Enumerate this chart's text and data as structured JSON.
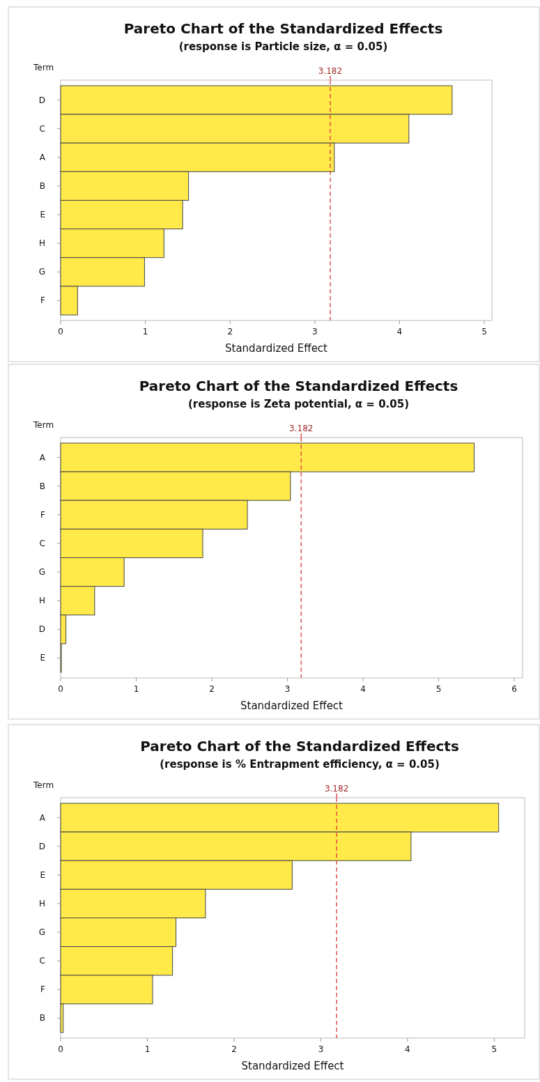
{
  "chart_data": [
    {
      "type": "bar",
      "orientation": "horizontal",
      "title": "Pareto Chart of the Standardized Effects",
      "subtitle": "(response is Particle size, α = 0.05)",
      "ylabel": "Term",
      "xlabel": "Standardized Effect",
      "categories": [
        "D",
        "C",
        "A",
        "B",
        "E",
        "H",
        "G",
        "F"
      ],
      "values": [
        4.62,
        4.11,
        3.23,
        1.51,
        1.44,
        1.22,
        0.99,
        0.2
      ],
      "color": "#ffea4a",
      "xlim": [
        0,
        5.09
      ],
      "xticks": [
        0,
        1,
        2,
        3,
        4,
        5
      ],
      "ref_lines": [
        {
          "axis": "x",
          "value": 3.182,
          "label": "3.182",
          "color": "#e0383a",
          "line_style": "dashed"
        }
      ]
    },
    {
      "type": "bar",
      "orientation": "horizontal",
      "title": "Pareto Chart of the Standardized Effects",
      "subtitle": "(response is Zeta potential, α = 0.05)",
      "ylabel": "Term",
      "xlabel": "Standardized Effect",
      "categories": [
        "A",
        "B",
        "F",
        "C",
        "G",
        "H",
        "D",
        "E"
      ],
      "values": [
        5.47,
        3.04,
        2.47,
        1.88,
        0.84,
        0.45,
        0.07,
        0.01
      ],
      "color": "#ffea4a",
      "xlim": [
        0,
        6.11
      ],
      "xticks": [
        0,
        1,
        2,
        3,
        4,
        5,
        6
      ],
      "ref_lines": [
        {
          "axis": "x",
          "value": 3.182,
          "label": "3.182",
          "color": "#e0383a",
          "line_style": "dashed"
        }
      ]
    },
    {
      "type": "bar",
      "orientation": "horizontal",
      "title": "Pareto Chart of the Standardized Effects",
      "subtitle": "(response is % Entrapment efficiency, α = 0.05)",
      "ylabel": "Term",
      "xlabel": "Standardized Effect",
      "categories": [
        "A",
        "D",
        "E",
        "H",
        "G",
        "C",
        "F",
        "B"
      ],
      "values": [
        5.05,
        4.04,
        2.67,
        1.67,
        1.33,
        1.29,
        1.06,
        0.03
      ],
      "color": "#ffea4a",
      "xlim": [
        0,
        5.35
      ],
      "xticks": [
        0,
        1,
        2,
        3,
        4,
        5
      ],
      "ref_lines": [
        {
          "axis": "x",
          "value": 3.182,
          "label": "3.182",
          "color": "#e0383a",
          "line_style": "dashed"
        }
      ]
    }
  ]
}
